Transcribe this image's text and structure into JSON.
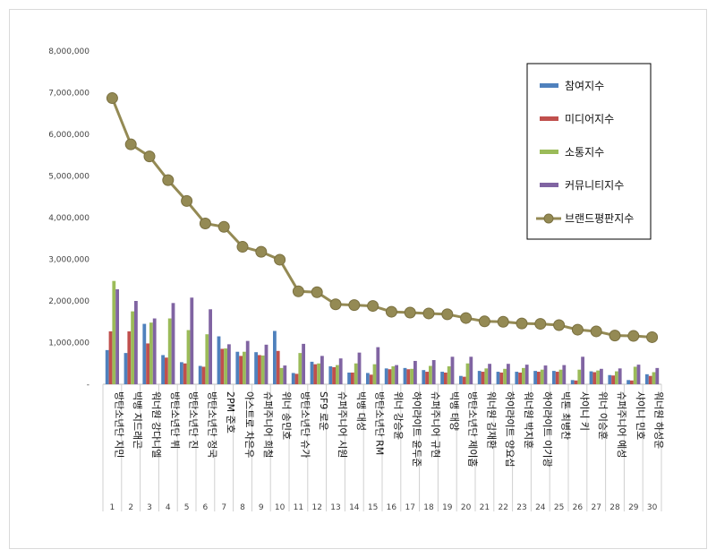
{
  "chart_data": {
    "type": "bar",
    "categories": [
      "방탄소년단 지민",
      "빅뱅 지드래곤",
      "워너원 강다니엘",
      "방탄소년단 뷔",
      "방탄소년단 진",
      "방탄소년단 정국",
      "2PM 준호",
      "아스트로 차은우",
      "슈퍼주니어 희철",
      "위너 송민호",
      "방탄소년단 슈가",
      "SF9 로운",
      "슈퍼주니어 시원",
      "빅뱅 대성",
      "방탄소년단 RM",
      "위너 강승윤",
      "하이라이트 윤두준",
      "슈퍼주니어 규현",
      "빅뱅 태양",
      "방탄소년단 제이홉",
      "워너원 김재환",
      "하이라이트 양요섭",
      "워너원 박지훈",
      "하이라이트 이기광",
      "빅톤 최병찬",
      "샤이니 키",
      "위너 이승훈",
      "슈퍼주니어 예성",
      "샤이니 민호",
      "워너원 하성운"
    ],
    "ranks": [
      "1",
      "2",
      "3",
      "4",
      "5",
      "6",
      "7",
      "8",
      "9",
      "10",
      "11",
      "12",
      "13",
      "14",
      "15",
      "16",
      "17",
      "18",
      "19",
      "20",
      "21",
      "22",
      "23",
      "24",
      "25",
      "26",
      "27",
      "28",
      "29",
      "30"
    ],
    "series": [
      {
        "name": "참여지수",
        "kind": "bar",
        "color": "#4F81BD",
        "values": [
          820000,
          750000,
          1450000,
          700000,
          530000,
          440000,
          1150000,
          780000,
          770000,
          1280000,
          270000,
          540000,
          430000,
          280000,
          270000,
          380000,
          390000,
          340000,
          300000,
          200000,
          320000,
          300000,
          300000,
          320000,
          320000,
          100000,
          310000,
          220000,
          100000,
          240000
        ]
      },
      {
        "name": "미디어지수",
        "kind": "bar",
        "color": "#C0504D",
        "values": [
          1270000,
          1270000,
          980000,
          640000,
          500000,
          420000,
          850000,
          680000,
          700000,
          800000,
          250000,
          480000,
          410000,
          280000,
          230000,
          360000,
          360000,
          300000,
          280000,
          180000,
          300000,
          280000,
          280000,
          300000,
          300000,
          90000,
          290000,
          210000,
          90000,
          200000
        ]
      },
      {
        "name": "소통지수",
        "kind": "bar",
        "color": "#9BBB59",
        "values": [
          2480000,
          1750000,
          1480000,
          1580000,
          1300000,
          1200000,
          860000,
          780000,
          690000,
          390000,
          750000,
          500000,
          460000,
          500000,
          480000,
          430000,
          370000,
          440000,
          430000,
          500000,
          380000,
          370000,
          390000,
          350000,
          350000,
          350000,
          330000,
          310000,
          420000,
          290000
        ]
      },
      {
        "name": "커뮤니티지수",
        "kind": "bar",
        "color": "#8064A2",
        "values": [
          2280000,
          2000000,
          1580000,
          1950000,
          2080000,
          1800000,
          960000,
          1040000,
          950000,
          450000,
          970000,
          680000,
          620000,
          760000,
          890000,
          460000,
          560000,
          580000,
          660000,
          660000,
          490000,
          490000,
          470000,
          450000,
          460000,
          660000,
          370000,
          380000,
          470000,
          390000
        ]
      },
      {
        "name": "브랜드평판지수",
        "kind": "line",
        "color": "#948A54",
        "values": [
          6870000,
          5760000,
          5470000,
          4900000,
          4400000,
          3860000,
          3780000,
          3300000,
          3180000,
          2990000,
          2230000,
          2210000,
          1920000,
          1900000,
          1880000,
          1740000,
          1720000,
          1700000,
          1680000,
          1590000,
          1510000,
          1500000,
          1460000,
          1450000,
          1420000,
          1310000,
          1270000,
          1170000,
          1160000,
          1130000
        ]
      }
    ],
    "ylim": [
      0,
      8000000
    ],
    "yticks": [
      "-",
      "1,000,000",
      "2,000,000",
      "3,000,000",
      "4,000,000",
      "5,000,000",
      "6,000,000",
      "7,000,000",
      "8,000,000"
    ],
    "legend_position": "top-right",
    "grid": false
  }
}
